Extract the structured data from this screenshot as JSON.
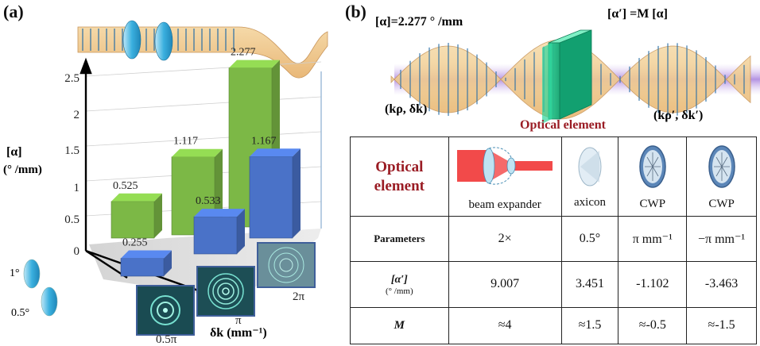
{
  "panel_a": {
    "label": "(a)",
    "ylabel_top": "[α]",
    "ylabel_bottom": "(° /mm)",
    "xlabel": "δk (mm⁻¹)",
    "y_ticks": [
      "0",
      "0.5",
      "1",
      "1.5",
      "2",
      "2.5"
    ],
    "x_ticks": [
      "0.5π",
      "π",
      "2π"
    ],
    "depth_ticks": [
      "1°",
      "0.5°"
    ],
    "chart_data": {
      "type": "bar",
      "categories": [
        "0.5π",
        "π",
        "2π"
      ],
      "series": [
        {
          "values": [
            0.525,
            1.117,
            2.277
          ],
          "color": "#7cb846"
        },
        {
          "values": [
            0.255,
            0.533,
            1.167
          ],
          "color": "#4a72c8"
        }
      ],
      "value_labels_green": [
        "0.525",
        "1.117",
        "2.277"
      ],
      "value_labels_blue": [
        "0.255",
        "0.533",
        "1.167"
      ],
      "ylim": [
        0,
        2.5
      ]
    }
  },
  "panel_b": {
    "label": "(b)",
    "alpha_label": "[α]=2.277 ° /mm",
    "alpha_prime_label": "[α′] =M [α]",
    "k_left": "(kρ, δk)",
    "k_right": "(kρ′, δk′)",
    "optical_element_caption": "Optical element",
    "table": {
      "header_label": "Optical element",
      "columns": [
        "beam expander",
        "axicon",
        "CWP",
        "CWP"
      ],
      "rows": [
        {
          "label": "Parameters",
          "values": [
            "2×",
            "0.5°",
            "π mm⁻¹",
            "−π mm⁻¹"
          ]
        },
        {
          "label": "[α′]",
          "sublabel": "(° /mm)",
          "values": [
            "9.007",
            "3.451",
            "-1.102",
            "-3.463"
          ]
        },
        {
          "label": "M",
          "values": [
            "≈4",
            "≈1.5",
            "≈-0.5",
            "≈-1.5"
          ]
        }
      ]
    }
  }
}
